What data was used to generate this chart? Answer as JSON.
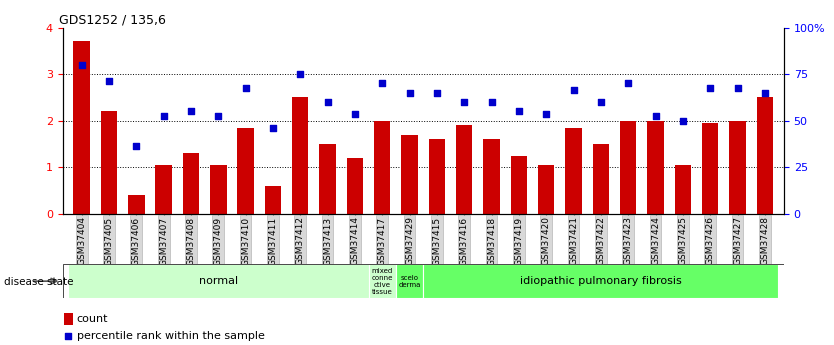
{
  "title": "GDS1252 / 135,6",
  "samples": [
    "GSM37404",
    "GSM37405",
    "GSM37406",
    "GSM37407",
    "GSM37408",
    "GSM37409",
    "GSM37410",
    "GSM37411",
    "GSM37412",
    "GSM37413",
    "GSM37414",
    "GSM37417",
    "GSM37429",
    "GSM37415",
    "GSM37416",
    "GSM37418",
    "GSM37419",
    "GSM37420",
    "GSM37421",
    "GSM37422",
    "GSM37423",
    "GSM37424",
    "GSM37425",
    "GSM37426",
    "GSM37427",
    "GSM37428"
  ],
  "counts": [
    3.72,
    2.2,
    0.4,
    1.05,
    1.3,
    1.05,
    1.85,
    0.6,
    2.5,
    1.5,
    1.2,
    2.0,
    1.7,
    1.6,
    1.9,
    1.6,
    1.25,
    1.05,
    1.85,
    1.5,
    2.0,
    2.0,
    1.05,
    1.95,
    2.0,
    2.5
  ],
  "percentiles": [
    3.2,
    2.85,
    1.45,
    2.1,
    2.2,
    2.1,
    2.7,
    1.85,
    3.0,
    2.4,
    2.15,
    2.8,
    2.6,
    2.6,
    2.4,
    2.4,
    2.2,
    2.15,
    2.65,
    2.4,
    2.8,
    2.1,
    2.0,
    2.7,
    2.7,
    2.6
  ],
  "bar_color": "#cc0000",
  "dot_color": "#0000cc",
  "ylim_left": [
    0,
    4
  ],
  "ylim_right": [
    0,
    100
  ],
  "yticks_left": [
    0,
    1,
    2,
    3,
    4
  ],
  "yticks_right": [
    0,
    25,
    50,
    75,
    100
  ],
  "group_boundaries": [
    {
      "label": "normal",
      "start": 0,
      "end": 11,
      "color": "#ccffcc"
    },
    {
      "label": "mixed\nconne\nctive\ntissue",
      "start": 11,
      "end": 12,
      "color": "#ccffcc"
    },
    {
      "label": "scelo\nderma",
      "start": 12,
      "end": 13,
      "color": "#66ff66"
    },
    {
      "label": "idiopathic pulmonary fibrosis",
      "start": 13,
      "end": 26,
      "color": "#66ff66"
    }
  ],
  "legend_count_label": "count",
  "legend_pct_label": "percentile rank within the sample",
  "disease_state_label": "disease state",
  "tick_label_fontsize": 6.5,
  "bar_width": 0.6
}
